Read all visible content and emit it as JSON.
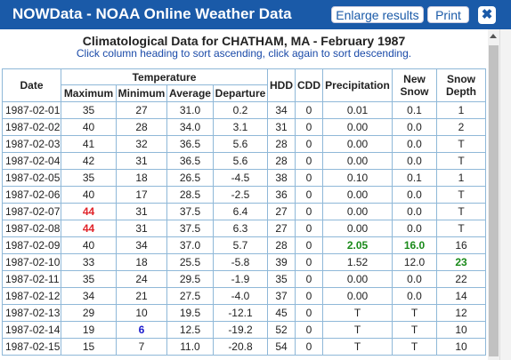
{
  "window": {
    "title": "NOWData - NOAA Online Weather Data",
    "enlarge_label": "Enlarge results",
    "print_label": "Print",
    "close_symbol": "✖"
  },
  "report": {
    "heading": "Climatological Data for CHATHAM, MA - February 1987",
    "subheading": "Click column heading to sort ascending, click again to sort descending."
  },
  "table": {
    "group_header": "Temperature",
    "headers": {
      "date": "Date",
      "maximum": "Maximum",
      "minimum": "Minimum",
      "average": "Average",
      "departure": "Departure",
      "hdd": "HDD",
      "cdd": "CDD",
      "precipitation": "Precipitation",
      "new_snow": "New Snow",
      "snow_depth": "Snow Depth"
    },
    "rows": [
      {
        "date": "1987-02-01",
        "max": "35",
        "min": "27",
        "avg": "31.0",
        "dep": "0.2",
        "hdd": "34",
        "cdd": "0",
        "precip": "0.01",
        "snow": "0.1",
        "depth": "1"
      },
      {
        "date": "1987-02-02",
        "max": "40",
        "min": "28",
        "avg": "34.0",
        "dep": "3.1",
        "hdd": "31",
        "cdd": "0",
        "precip": "0.00",
        "snow": "0.0",
        "depth": "2"
      },
      {
        "date": "1987-02-03",
        "max": "41",
        "min": "32",
        "avg": "36.5",
        "dep": "5.6",
        "hdd": "28",
        "cdd": "0",
        "precip": "0.00",
        "snow": "0.0",
        "depth": "T"
      },
      {
        "date": "1987-02-04",
        "max": "42",
        "min": "31",
        "avg": "36.5",
        "dep": "5.6",
        "hdd": "28",
        "cdd": "0",
        "precip": "0.00",
        "snow": "0.0",
        "depth": "T"
      },
      {
        "date": "1987-02-05",
        "max": "35",
        "min": "18",
        "avg": "26.5",
        "dep": "-4.5",
        "hdd": "38",
        "cdd": "0",
        "precip": "0.10",
        "snow": "0.1",
        "depth": "1"
      },
      {
        "date": "1987-02-06",
        "max": "40",
        "min": "17",
        "avg": "28.5",
        "dep": "-2.5",
        "hdd": "36",
        "cdd": "0",
        "precip": "0.00",
        "snow": "0.0",
        "depth": "T"
      },
      {
        "date": "1987-02-07",
        "max": "44",
        "min": "31",
        "avg": "37.5",
        "dep": "6.4",
        "hdd": "27",
        "cdd": "0",
        "precip": "0.00",
        "snow": "0.0",
        "depth": "T"
      },
      {
        "date": "1987-02-08",
        "max": "44",
        "min": "31",
        "avg": "37.5",
        "dep": "6.3",
        "hdd": "27",
        "cdd": "0",
        "precip": "0.00",
        "snow": "0.0",
        "depth": "T"
      },
      {
        "date": "1987-02-09",
        "max": "40",
        "min": "34",
        "avg": "37.0",
        "dep": "5.7",
        "hdd": "28",
        "cdd": "0",
        "precip": "2.05",
        "snow": "16.0",
        "depth": "16"
      },
      {
        "date": "1987-02-10",
        "max": "33",
        "min": "18",
        "avg": "25.5",
        "dep": "-5.8",
        "hdd": "39",
        "cdd": "0",
        "precip": "1.52",
        "snow": "12.0",
        "depth": "23"
      },
      {
        "date": "1987-02-11",
        "max": "35",
        "min": "24",
        "avg": "29.5",
        "dep": "-1.9",
        "hdd": "35",
        "cdd": "0",
        "precip": "0.00",
        "snow": "0.0",
        "depth": "22"
      },
      {
        "date": "1987-02-12",
        "max": "34",
        "min": "21",
        "avg": "27.5",
        "dep": "-4.0",
        "hdd": "37",
        "cdd": "0",
        "precip": "0.00",
        "snow": "0.0",
        "depth": "14"
      },
      {
        "date": "1987-02-13",
        "max": "29",
        "min": "10",
        "avg": "19.5",
        "dep": "-12.1",
        "hdd": "45",
        "cdd": "0",
        "precip": "T",
        "snow": "T",
        "depth": "12"
      },
      {
        "date": "1987-02-14",
        "max": "19",
        "min": "6",
        "avg": "12.5",
        "dep": "-19.2",
        "hdd": "52",
        "cdd": "0",
        "precip": "T",
        "snow": "T",
        "depth": "10"
      },
      {
        "date": "1987-02-15",
        "max": "15",
        "min": "7",
        "avg": "11.0",
        "dep": "-20.8",
        "hdd": "54",
        "cdd": "0",
        "precip": "T",
        "snow": "T",
        "depth": "10"
      }
    ]
  },
  "colors": {
    "titlebar": "#1a5aa8",
    "highlight_max": "#e0242a",
    "highlight_min": "#1a1acc",
    "highlight_green": "#1a8a1a"
  }
}
